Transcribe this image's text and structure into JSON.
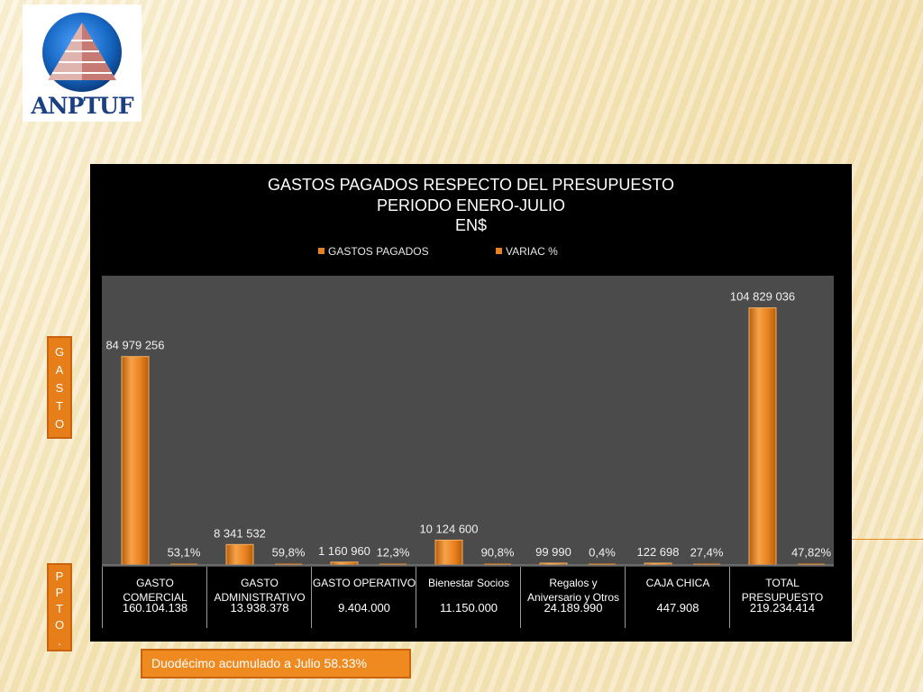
{
  "logo": {
    "text": "ANPTUF"
  },
  "chart_data": {
    "type": "bar",
    "title_lines": [
      "GASTOS PAGADOS RESPECTO DEL PRESUPUESTO",
      "PERIODO ENERO-JULIO",
      "EN$"
    ],
    "legend": [
      "GASTOS PAGADOS",
      "VARIAC %"
    ],
    "categories": [
      "GASTO COMERCIAL",
      "GASTO ADMINISTRATIVO",
      "GASTO OPERATIVO",
      "Bienestar Socios",
      "Regalos y Aniversario y Otros",
      "CAJA CHICA",
      "TOTAL PRESUPUESTO"
    ],
    "series": [
      {
        "name": "GASTOS PAGADOS",
        "values": [
          84979256,
          8341532,
          1160960,
          10124600,
          99990,
          122698,
          104829036
        ],
        "labels": [
          "84 979 256",
          "8 341 532",
          "1 160 960",
          "10 124 600",
          "99 990",
          "122 698",
          "104 829 036"
        ]
      },
      {
        "name": "VARIAC %",
        "values": [
          53.1,
          59.8,
          12.3,
          90.8,
          0.4,
          27.4,
          47.82
        ],
        "labels": [
          "53,1%",
          "59,8%",
          "12,3%",
          "90,8%",
          "0,4%",
          "27,4%",
          "47,82%"
        ]
      }
    ],
    "budget_row": [
      "160.104.138",
      "13.938.378",
      "9.404.000",
      "11.150.000",
      "24.189.990",
      "447.908",
      "219.234.414"
    ],
    "ylim": [
      0,
      115000000
    ],
    "colors": {
      "bar": "#e8821e",
      "bar_light": "#f6a24a",
      "bar_dark": "#b65d0c",
      "plot_bg": "#4b4b4b",
      "panel_bg": "#000000"
    }
  },
  "side_labels": {
    "gasto": "GASTO",
    "ppto": "PPTO."
  },
  "footer": {
    "text": "Duodécimo acumulado a Julio 58.33%"
  }
}
